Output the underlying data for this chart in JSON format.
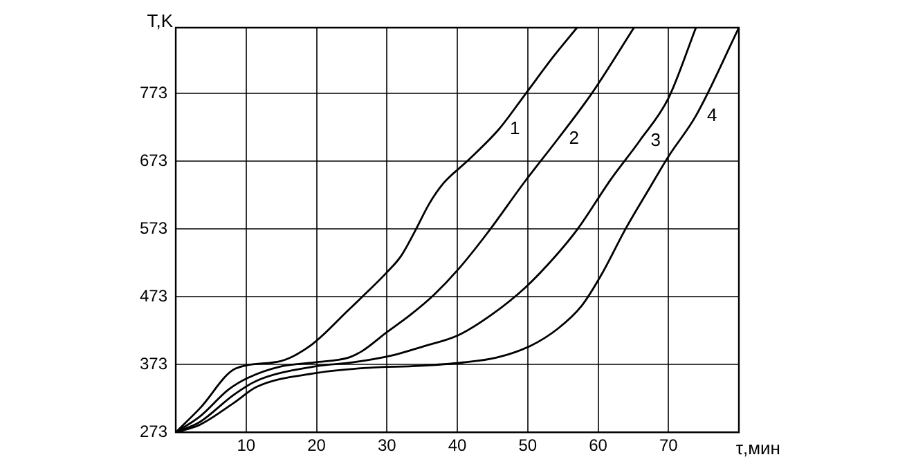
{
  "chart_data": {
    "type": "line",
    "xlabel": "τ,мин",
    "ylabel": "T,K",
    "xlim": [
      0,
      80
    ],
    "xticks": [
      10,
      20,
      30,
      40,
      50,
      60,
      70
    ],
    "ylim": [
      273,
      870
    ],
    "yticks": [
      273,
      373,
      473,
      573,
      673,
      773
    ],
    "grid": true,
    "legend": false,
    "marker": "none",
    "line_style": "solid",
    "series": [
      {
        "name": "1",
        "color": "#000000",
        "x": [
          0,
          3.4,
          8.5,
          14.9,
          19.4,
          24.5,
          26.5,
          29.9,
          32,
          34,
          36,
          38,
          41.4,
          45.9,
          49.6,
          53.7,
          57
        ],
        "values": [
          273,
          308,
          367,
          378,
          403,
          453,
          473,
          508,
          533,
          570,
          610,
          640,
          673,
          720,
          771,
          828,
          870
        ]
      },
      {
        "name": "2",
        "color": "#000000",
        "x": [
          0,
          3.4,
          7.5,
          10.2,
          14.9,
          19.7,
          24.5,
          26.5,
          29.9,
          33.3,
          36.7,
          40.1,
          44.2,
          49.6,
          54.3,
          59.1,
          65.1
        ],
        "values": [
          273,
          296,
          336,
          353,
          370,
          376,
          383,
          393,
          420,
          446,
          476,
          513,
          566,
          643,
          706,
          773,
          870
        ]
      },
      {
        "name": "3",
        "color": "#000000",
        "x": [
          0,
          3.4,
          8.2,
          11.5,
          19.7,
          25.1,
          30.6,
          35.3,
          40.1,
          44.8,
          49.6,
          53.7,
          57.1,
          61.8,
          65.9,
          70,
          73.9
        ],
        "values": [
          273,
          288,
          328,
          349,
          370,
          376,
          386,
          400,
          416,
          446,
          486,
          530,
          573,
          646,
          703,
          766,
          870
        ]
      },
      {
        "name": "4",
        "color": "#000000",
        "x": [
          0,
          3.4,
          8.2,
          11.5,
          19.7,
          27.2,
          34.6,
          40.8,
          45.5,
          50.3,
          54.3,
          57.7,
          60.5,
          63.9,
          67.3,
          70,
          73.9,
          80
        ],
        "values": [
          273,
          284,
          316,
          340,
          360,
          368,
          371,
          376,
          383,
          400,
          426,
          460,
          506,
          573,
          633,
          680,
          740,
          870
        ]
      }
    ]
  }
}
